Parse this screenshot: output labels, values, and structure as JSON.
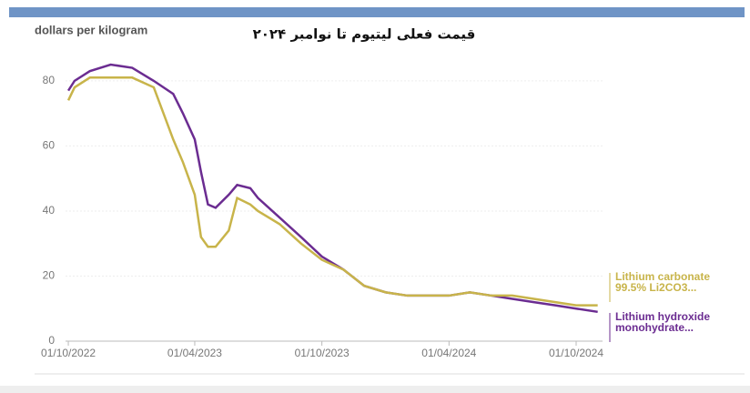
{
  "chart_data": {
    "type": "line",
    "title": "قیمت فعلی لیتیوم تا نوامبر ۲۰۲۴",
    "y_label": "dollars per kilogram",
    "x": [
      "2022-10-01",
      "2022-10-10",
      "2022-11-01",
      "2022-12-01",
      "2023-01-01",
      "2023-02-01",
      "2023-03-01",
      "2023-03-15",
      "2023-04-01",
      "2023-04-10",
      "2023-04-20",
      "2023-05-01",
      "2023-05-20",
      "2023-06-01",
      "2023-06-20",
      "2023-07-01",
      "2023-08-01",
      "2023-09-01",
      "2023-10-01",
      "2023-11-01",
      "2023-12-01",
      "2024-01-01",
      "2024-02-01",
      "2024-03-01",
      "2024-04-01",
      "2024-05-01",
      "2024-06-01",
      "2024-07-01",
      "2024-08-01",
      "2024-09-01",
      "2024-10-01",
      "2024-11-01"
    ],
    "series": [
      {
        "name": "Lithium hydroxide monohydrate...",
        "color": "#6b2c91",
        "values": [
          77,
          80,
          83,
          85,
          84,
          80,
          76,
          70,
          62,
          52,
          42,
          41,
          45,
          48,
          47,
          44,
          38,
          32,
          26,
          22,
          17,
          15,
          14,
          14,
          14,
          15,
          14,
          13,
          12,
          11,
          10,
          9
        ]
      },
      {
        "name": "Lithium carbonate 99.5% Li2CO3...",
        "color": "#c8b44a",
        "values": [
          74,
          78,
          81,
          81,
          81,
          78,
          62,
          55,
          45,
          32,
          29,
          29,
          34,
          44,
          42,
          40,
          36,
          30,
          25,
          22,
          17,
          15,
          14,
          14,
          14,
          15,
          14,
          14,
          13,
          12,
          11,
          11
        ]
      }
    ],
    "xlim": [
      "2022-09-27",
      "2024-11-08"
    ],
    "xticks": [
      {
        "value": "2022-10-01",
        "label": "01/10/2022"
      },
      {
        "value": "2023-04-01",
        "label": "01/04/2023"
      },
      {
        "value": "2023-10-01",
        "label": "01/10/2023"
      },
      {
        "value": "2024-04-01",
        "label": "01/04/2024"
      },
      {
        "value": "2024-10-01",
        "label": "01/10/2024"
      }
    ],
    "ylim": [
      0,
      85
    ],
    "yticks": [
      0,
      20,
      40,
      60,
      80
    ],
    "grid": true
  }
}
